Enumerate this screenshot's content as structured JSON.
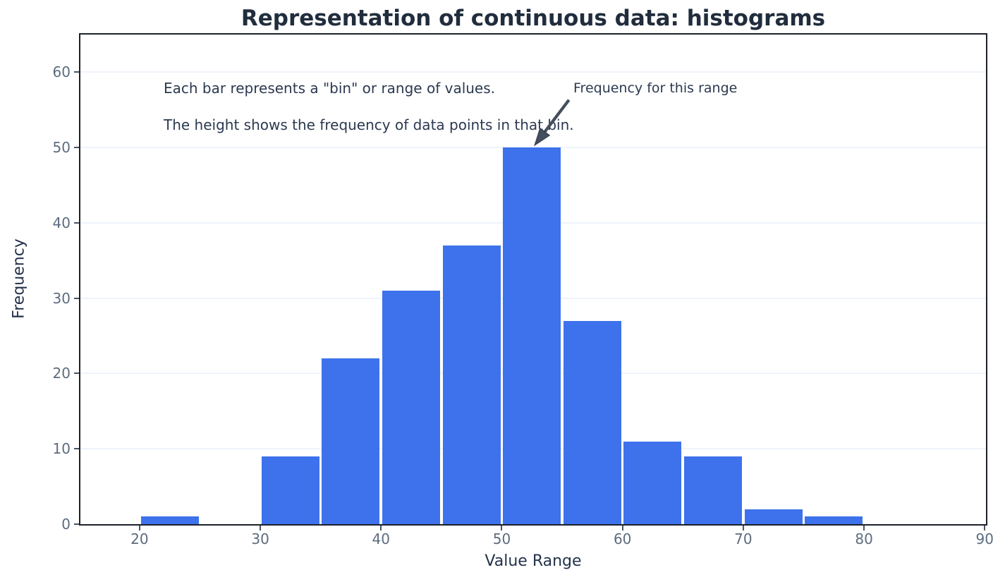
{
  "figure": {
    "title": "Representation of continuous data: histograms",
    "x_axis_label": "Value Range",
    "y_axis_label": "Frequency"
  },
  "annotations": {
    "line1": "Each bar represents a \"bin\" or range of values.",
    "line2": "The height shows the frequency of data points in that bin.",
    "arrow_label": "Frequency for this range",
    "arrow_points_to": "top of the 50-55 bin (frequency 50)"
  },
  "colors": {
    "bar_fill": "#3d72ec",
    "bar_edge": "#ffffff",
    "gridline": "#eff3fb",
    "spine": "#1c212b",
    "tick_mark": "#4a5563",
    "tick_label_text": "#5d6c7f",
    "title_text": "#212d3d",
    "axis_label_text": "#24324a",
    "annotation_text": "#2b3950",
    "arrow": "#454e5c",
    "background": "#ffffff"
  },
  "chart_data": {
    "type": "bar",
    "subtype": "histogram",
    "title": "Representation of continuous data: histograms",
    "xlabel": "Value Range",
    "ylabel": "Frequency",
    "bin_width": 5,
    "bins": [
      {
        "start": 20,
        "end": 25,
        "frequency": 1
      },
      {
        "start": 25,
        "end": 30,
        "frequency": 0
      },
      {
        "start": 30,
        "end": 35,
        "frequency": 9
      },
      {
        "start": 35,
        "end": 40,
        "frequency": 22
      },
      {
        "start": 40,
        "end": 45,
        "frequency": 31
      },
      {
        "start": 45,
        "end": 50,
        "frequency": 37
      },
      {
        "start": 50,
        "end": 55,
        "frequency": 50
      },
      {
        "start": 55,
        "end": 60,
        "frequency": 27
      },
      {
        "start": 60,
        "end": 65,
        "frequency": 11
      },
      {
        "start": 65,
        "end": 70,
        "frequency": 9
      },
      {
        "start": 70,
        "end": 75,
        "frequency": 2
      },
      {
        "start": 75,
        "end": 80,
        "frequency": 1
      }
    ],
    "x_ticks": [
      20,
      30,
      40,
      50,
      60,
      70,
      80,
      90
    ],
    "y_ticks": [
      0,
      10,
      20,
      30,
      40,
      50,
      60
    ],
    "xlim": [
      15.1,
      90.1
    ],
    "ylim": [
      0,
      65
    ],
    "grid": "horizontal",
    "legend": "none"
  }
}
